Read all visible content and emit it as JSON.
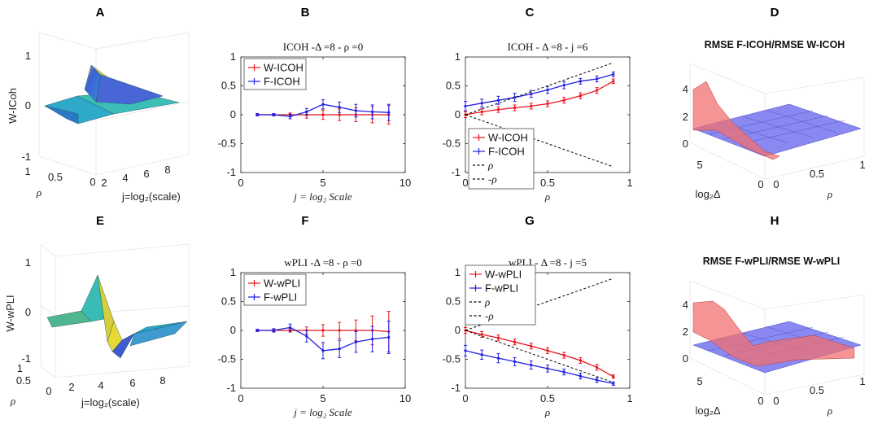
{
  "panel_labels": [
    "A",
    "B",
    "C",
    "D",
    "E",
    "F",
    "G",
    "H"
  ],
  "chart_data": [
    {
      "id": "A",
      "type": "surface3d",
      "zlabel": "W-ICoh",
      "xlabel": "j=log₂(scale)",
      "ylabel": "ρ",
      "zticks": [
        "1",
        "0",
        "-1"
      ],
      "xticks": [
        "2",
        "4",
        "6",
        "8"
      ],
      "yticks": [
        "1",
        "0.5",
        "0"
      ],
      "zlim": [
        -1,
        1
      ]
    },
    {
      "id": "B",
      "type": "line",
      "title": "ICOH -Δ =8 - ρ =0",
      "xlabel": "j = log₂ Scale",
      "ylabel": "",
      "xlim": [
        0,
        10
      ],
      "ylim": [
        -1,
        1
      ],
      "xticks": [
        "0",
        "5",
        "10"
      ],
      "yticks": [
        "1",
        "0.5",
        "0",
        "-0.5",
        "-1"
      ],
      "x": [
        1,
        2,
        3,
        4,
        5,
        6,
        7,
        8,
        9
      ],
      "series": [
        {
          "name": "W-ICOH",
          "color": "#e8141b",
          "values": [
            0,
            0,
            0,
            0,
            0,
            0,
            0,
            0,
            0
          ],
          "err": [
            0.02,
            0.02,
            0.03,
            0.06,
            0.08,
            0.1,
            0.12,
            0.14,
            0.16
          ]
        },
        {
          "name": "F-ICOH",
          "color": "#1f1fe0",
          "values": [
            0,
            0,
            -0.03,
            0.05,
            0.18,
            0.13,
            0.07,
            0.05,
            0.04
          ],
          "err": [
            0.02,
            0.02,
            0.04,
            0.06,
            0.08,
            0.09,
            0.11,
            0.12,
            0.14
          ]
        }
      ],
      "legend": "top-left"
    },
    {
      "id": "C",
      "type": "line",
      "title": "ICOH - Δ =8 - j =6",
      "xlabel": "ρ",
      "ylabel": "",
      "xlim": [
        0,
        1
      ],
      "ylim": [
        -1,
        1
      ],
      "xticks": [
        "0",
        "0.5",
        "1"
      ],
      "yticks": [
        "1",
        "0.5",
        "0",
        "-0.5",
        "-1"
      ],
      "x": [
        0,
        0.1,
        0.2,
        0.3,
        0.4,
        0.5,
        0.6,
        0.7,
        0.8,
        0.9
      ],
      "series": [
        {
          "name": "W-ICOH",
          "color": "#e8141b",
          "values": [
            0,
            0.05,
            0.09,
            0.12,
            0.15,
            0.19,
            0.25,
            0.33,
            0.42,
            0.58
          ],
          "err": [
            0.05,
            0.05,
            0.05,
            0.05,
            0.05,
            0.05,
            0.05,
            0.05,
            0.05,
            0.04
          ]
        },
        {
          "name": "F-ICOH",
          "color": "#1f1fe0",
          "values": [
            0.15,
            0.2,
            0.25,
            0.3,
            0.36,
            0.43,
            0.51,
            0.58,
            0.62,
            0.7
          ],
          "err": [
            0.08,
            0.07,
            0.07,
            0.07,
            0.06,
            0.06,
            0.06,
            0.05,
            0.05,
            0.04
          ]
        },
        {
          "name": "ρ",
          "color": "#000000",
          "dashed": true,
          "values": [
            0,
            0.1,
            0.2,
            0.3,
            0.4,
            0.5,
            0.6,
            0.7,
            0.8,
            0.9
          ]
        },
        {
          "name": "-ρ",
          "color": "#000000",
          "dashed": true,
          "values": [
            0,
            -0.1,
            -0.2,
            -0.3,
            -0.4,
            -0.5,
            -0.6,
            -0.7,
            -0.8,
            -0.9
          ]
        }
      ],
      "legend": "bottom-left"
    },
    {
      "id": "D",
      "type": "surface3d",
      "title": "RMSE F-ICOH/RMSE W-ICOH",
      "xlabel": "ρ",
      "ylabel": "log₂Δ",
      "zticks": [
        "4",
        "2",
        "0"
      ],
      "xticks": [
        "0",
        "0.5",
        "1"
      ],
      "yticks": [
        "5",
        "0"
      ]
    },
    {
      "id": "E",
      "type": "surface3d",
      "zlabel": "W-wPLI",
      "xlabel": "j=log₂(scale)",
      "ylabel": "ρ",
      "zticks": [
        "1",
        "0",
        "-1"
      ],
      "xticks": [
        "2",
        "4",
        "6",
        "8"
      ],
      "yticks": [
        "1",
        "0.5",
        "0"
      ],
      "zlim": [
        -1,
        1
      ]
    },
    {
      "id": "F",
      "type": "line",
      "title": "wPLI -Δ =8 - ρ =0",
      "xlabel": "j = log₂ Scale",
      "ylabel": "",
      "xlim": [
        0,
        10
      ],
      "ylim": [
        -1,
        1
      ],
      "xticks": [
        "0",
        "5",
        "10"
      ],
      "yticks": [
        "1",
        "0.5",
        "0",
        "-0.5",
        "-1"
      ],
      "x": [
        1,
        2,
        3,
        4,
        5,
        6,
        7,
        8,
        9
      ],
      "series": [
        {
          "name": "W-wPLI",
          "color": "#e8141b",
          "values": [
            0,
            0,
            0,
            0,
            0,
            0,
            0,
            0,
            -0.02
          ],
          "err": [
            0.02,
            0.02,
            0.03,
            0.06,
            0.1,
            0.14,
            0.18,
            0.25,
            0.35
          ]
        },
        {
          "name": "F-wPLI",
          "color": "#1f1fe0",
          "values": [
            0,
            0,
            0.05,
            -0.1,
            -0.35,
            -0.32,
            -0.2,
            -0.15,
            -0.12
          ],
          "err": [
            0.02,
            0.03,
            0.06,
            0.1,
            0.14,
            0.15,
            0.18,
            0.22,
            0.28
          ]
        }
      ],
      "legend": "top-left"
    },
    {
      "id": "G",
      "type": "line",
      "title": "wPLI - Δ =8 - j =5",
      "xlabel": "ρ",
      "ylabel": "",
      "xlim": [
        0,
        1
      ],
      "ylim": [
        -1,
        1
      ],
      "xticks": [
        "0",
        "0.5",
        "1"
      ],
      "yticks": [
        "1",
        "0.5",
        "0",
        "-0.5",
        "-1"
      ],
      "x": [
        0,
        0.1,
        0.2,
        0.3,
        0.4,
        0.5,
        0.6,
        0.7,
        0.8,
        0.9
      ],
      "series": [
        {
          "name": "W-wPLI",
          "color": "#e8141b",
          "values": [
            0,
            -0.07,
            -0.13,
            -0.2,
            -0.27,
            -0.35,
            -0.43,
            -0.52,
            -0.64,
            -0.8
          ],
          "err": [
            0.05,
            0.05,
            0.05,
            0.05,
            0.05,
            0.05,
            0.05,
            0.05,
            0.05,
            0.03
          ]
        },
        {
          "name": "F-wPLI",
          "color": "#1f1fe0",
          "values": [
            -0.35,
            -0.42,
            -0.48,
            -0.54,
            -0.6,
            -0.66,
            -0.72,
            -0.79,
            -0.86,
            -0.92
          ],
          "err": [
            0.09,
            0.08,
            0.08,
            0.07,
            0.07,
            0.06,
            0.05,
            0.05,
            0.04,
            0.03
          ]
        },
        {
          "name": "ρ",
          "color": "#000000",
          "dashed": true,
          "values": [
            0,
            0.1,
            0.2,
            0.3,
            0.4,
            0.5,
            0.6,
            0.7,
            0.8,
            0.9
          ]
        },
        {
          "name": "-ρ",
          "color": "#000000",
          "dashed": true,
          "values": [
            0,
            -0.1,
            -0.2,
            -0.3,
            -0.4,
            -0.5,
            -0.6,
            -0.7,
            -0.8,
            -0.9
          ]
        }
      ],
      "legend": "top-left"
    },
    {
      "id": "H",
      "type": "surface3d",
      "title": "RMSE F-wPLI/RMSE W-wPLI",
      "xlabel": "ρ",
      "ylabel": "log₂Δ",
      "zticks": [
        "4",
        "2",
        "0"
      ],
      "xticks": [
        "0",
        "0.5",
        "1"
      ],
      "yticks": [
        "5",
        "0"
      ]
    }
  ]
}
